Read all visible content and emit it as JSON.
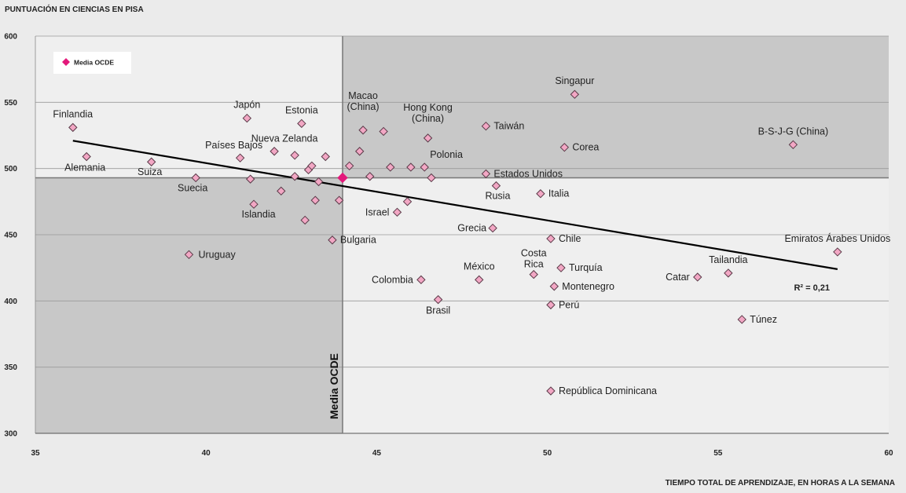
{
  "chart_data": {
    "type": "scatter",
    "title": "",
    "ylabel": "PUNTUACIÓN EN CIENCIAS EN PISA",
    "xlabel": "TIEMPO TOTAL DE APRENDIZAJE, EN HORAS A LA SEMANA",
    "xlim": [
      35,
      60
    ],
    "ylim": [
      300,
      600
    ],
    "xticks": [
      35,
      40,
      45,
      50,
      55,
      60
    ],
    "yticks": [
      300,
      350,
      400,
      450,
      500,
      550,
      600
    ],
    "grid": "horizontal",
    "oecd_mean": {
      "x": 44.0,
      "y": 493,
      "label": "Media OCDE"
    },
    "legend": {
      "label": "Media OCDE",
      "position": "top-left"
    },
    "trendline": {
      "x": [
        36.1,
        58.5
      ],
      "y": [
        521,
        424
      ],
      "r2_label": "R² = 0,21"
    },
    "colors": {
      "marker_fill": "#f2a7c4",
      "marker_stroke": "#5a3a48",
      "mean_marker": "#e3197b",
      "shade": "#c8c8c8",
      "trend": "#000000"
    },
    "points": [
      {
        "label": "Finlandia",
        "x": 36.1,
        "y": 531
      },
      {
        "label": "Alemania",
        "x": 36.5,
        "y": 509
      },
      {
        "label": "Suiza",
        "x": 38.4,
        "y": 505
      },
      {
        "label": "Uruguay",
        "x": 39.5,
        "y": 435
      },
      {
        "label": "Suecia",
        "x": 39.7,
        "y": 493
      },
      {
        "label": "Países Bajos",
        "x": 41.0,
        "y": 508
      },
      {
        "label": "Japón",
        "x": 41.2,
        "y": 538
      },
      {
        "label": "",
        "x": 41.3,
        "y": 492
      },
      {
        "label": "Islandia",
        "x": 41.4,
        "y": 473
      },
      {
        "label": "Nueva Zelanda",
        "x": 42.0,
        "y": 513
      },
      {
        "label": "",
        "x": 42.2,
        "y": 483
      },
      {
        "label": "",
        "x": 42.6,
        "y": 510
      },
      {
        "label": "",
        "x": 42.6,
        "y": 494
      },
      {
        "label": "Estonia",
        "x": 42.8,
        "y": 534
      },
      {
        "label": "",
        "x": 42.9,
        "y": 461
      },
      {
        "label": "",
        "x": 43.0,
        "y": 499
      },
      {
        "label": "",
        "x": 43.1,
        "y": 502
      },
      {
        "label": "",
        "x": 43.2,
        "y": 476
      },
      {
        "label": "",
        "x": 43.3,
        "y": 490
      },
      {
        "label": "",
        "x": 43.5,
        "y": 509
      },
      {
        "label": "Bulgaria",
        "x": 43.7,
        "y": 446
      },
      {
        "label": "",
        "x": 43.9,
        "y": 476
      },
      {
        "label": "",
        "x": 44.2,
        "y": 502
      },
      {
        "label": "",
        "x": 44.5,
        "y": 513
      },
      {
        "label": "Macao (China)",
        "x": 44.6,
        "y": 529
      },
      {
        "label": "",
        "x": 44.8,
        "y": 494
      },
      {
        "label": "",
        "x": 45.2,
        "y": 528
      },
      {
        "label": "",
        "x": 45.4,
        "y": 501
      },
      {
        "label": "Israel",
        "x": 45.6,
        "y": 467
      },
      {
        "label": "",
        "x": 45.9,
        "y": 475
      },
      {
        "label": "",
        "x": 46.0,
        "y": 501
      },
      {
        "label": "Colombia",
        "x": 46.3,
        "y": 416
      },
      {
        "label": "Polonia",
        "x": 46.4,
        "y": 501
      },
      {
        "label": "Hong Kong (China)",
        "x": 46.5,
        "y": 523
      },
      {
        "label": "",
        "x": 46.6,
        "y": 493
      },
      {
        "label": "Brasil",
        "x": 46.8,
        "y": 401
      },
      {
        "label": "México",
        "x": 48.0,
        "y": 416
      },
      {
        "label": "Estados Unidos",
        "x": 48.2,
        "y": 496
      },
      {
        "label": "Taiwán",
        "x": 48.2,
        "y": 532
      },
      {
        "label": "Grecia",
        "x": 48.4,
        "y": 455
      },
      {
        "label": "Rusia",
        "x": 48.5,
        "y": 487
      },
      {
        "label": "Costa Rica",
        "x": 49.6,
        "y": 420
      },
      {
        "label": "Italia",
        "x": 49.8,
        "y": 481
      },
      {
        "label": "República Dominicana",
        "x": 50.1,
        "y": 332
      },
      {
        "label": "Perú",
        "x": 50.1,
        "y": 397
      },
      {
        "label": "Chile",
        "x": 50.1,
        "y": 447
      },
      {
        "label": "Montenegro",
        "x": 50.2,
        "y": 411
      },
      {
        "label": "Turquía",
        "x": 50.4,
        "y": 425
      },
      {
        "label": "Corea",
        "x": 50.5,
        "y": 516
      },
      {
        "label": "Singapur",
        "x": 50.8,
        "y": 556
      },
      {
        "label": "Catar",
        "x": 54.4,
        "y": 418
      },
      {
        "label": "Tailandia",
        "x": 55.3,
        "y": 421
      },
      {
        "label": "Túnez",
        "x": 55.7,
        "y": 386
      },
      {
        "label": "B-S-J-G (China)",
        "x": 57.2,
        "y": 518
      },
      {
        "label": "Emiratos Árabes Unidos",
        "x": 58.5,
        "y": 437
      }
    ]
  }
}
